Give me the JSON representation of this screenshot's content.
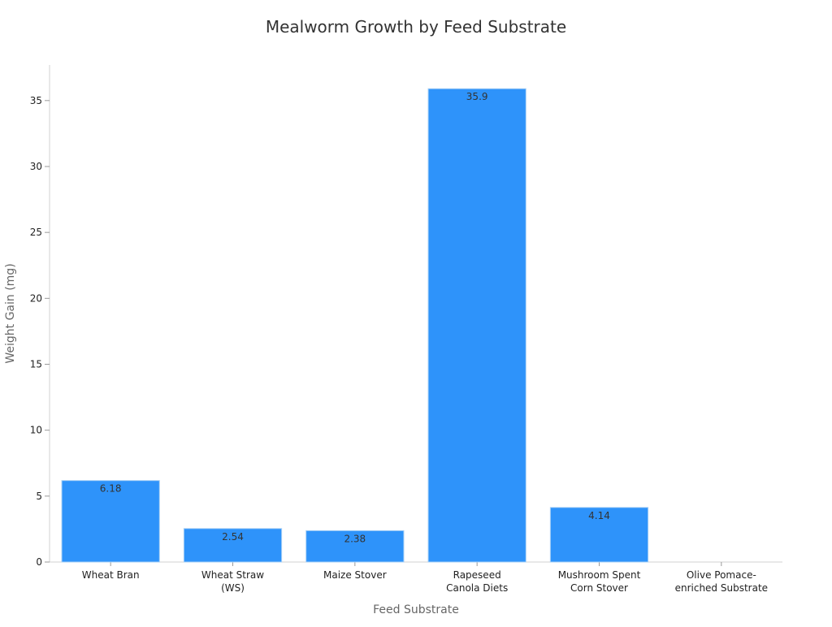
{
  "chart_data": {
    "type": "bar",
    "title": "Mealworm Growth by Feed Substrate",
    "xlabel": "Feed Substrate",
    "ylabel": "Weight Gain (mg)",
    "categories": [
      [
        "Wheat Bran"
      ],
      [
        "Wheat Straw",
        "(WS)"
      ],
      [
        "Maize Stover"
      ],
      [
        "Rapeseed",
        "Canola Diets"
      ],
      [
        "Mushroom Spent",
        "Corn Stover"
      ],
      [
        "Olive Pomace-",
        "enriched Substrate"
      ]
    ],
    "values": [
      6.18,
      2.54,
      2.38,
      35.9,
      4.14,
      0
    ],
    "data_labels": [
      "6.18",
      "2.54",
      "2.38",
      "35.9",
      "4.14",
      ""
    ],
    "ylim": [
      0,
      37.7
    ],
    "yticks": [
      0,
      5,
      10,
      15,
      20,
      25,
      30,
      35
    ],
    "grid": false,
    "bar_color": "#2e93fa",
    "bar_edge_color": "#a8d0f5"
  }
}
